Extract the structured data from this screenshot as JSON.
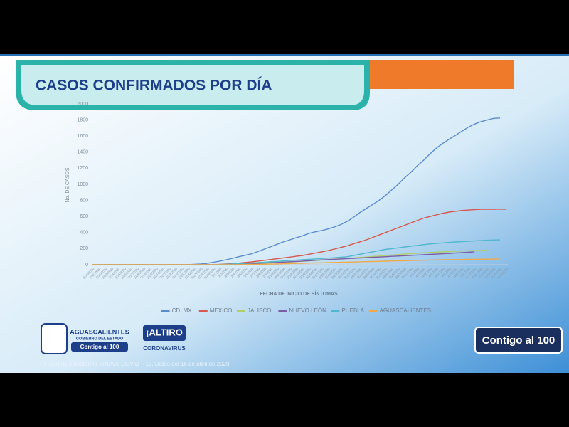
{
  "chart_data": {
    "type": "line",
    "title": "CASOS CONFIRMADOS POR DÍA",
    "y_label": "No. DE CASOS",
    "x_label": "FECHA DE INICIO DE SÍNTOMAS",
    "categories": [
      "2/10/2020",
      "2/11/2020",
      "2/12/2020",
      "2/13/2020",
      "2/14/2020",
      "2/15/2020",
      "2/16/2020",
      "2/17/2020",
      "2/18/2020",
      "2/19/2020",
      "2/20/2020",
      "2/21/2020",
      "2/22/2020",
      "2/23/2020",
      "2/24/2020",
      "2/25/2020",
      "2/26/2020",
      "2/27/2020",
      "2/28/2020",
      "2/29/2020",
      "3/1/2020",
      "3/2/2020",
      "3/3/2020",
      "3/4/2020",
      "3/5/2020",
      "3/6/2020",
      "3/7/2020",
      "3/8/2020",
      "3/9/2020",
      "3/10/2020",
      "3/11/2020",
      "3/12/2020",
      "3/13/2020",
      "3/14/2020",
      "3/15/2020",
      "3/16/2020",
      "3/17/2020",
      "3/18/2020",
      "3/19/2020",
      "3/20/2020",
      "3/21/2020",
      "3/22/2020",
      "3/23/2020",
      "3/24/2020",
      "3/25/2020",
      "3/26/2020",
      "3/27/2020",
      "3/28/2020",
      "3/29/2020",
      "3/30/2020",
      "3/31/2020",
      "4/1/2020",
      "4/2/2020",
      "4/3/2020",
      "4/4/2020",
      "4/5/2020",
      "4/6/2020",
      "4/7/2020",
      "4/8/2020",
      "4/9/2020",
      "4/10/2020",
      "4/11/2020",
      "4/12/2020",
      "4/13/2020",
      "4/14/2020",
      "4/15/2020"
    ],
    "series": [
      {
        "name": "CD. MX",
        "color": "#5b8ccb",
        "values": [
          0,
          0,
          0,
          0,
          0,
          0,
          0,
          0,
          0,
          0,
          0,
          0,
          0,
          0,
          0,
          2,
          5,
          10,
          18,
          30,
          45,
          62,
          80,
          100,
          118,
          135,
          165,
          195,
          225,
          255,
          285,
          310,
          335,
          360,
          390,
          410,
          425,
          445,
          470,
          500,
          540,
          590,
          650,
          700,
          750,
          800,
          860,
          930,
          1000,
          1080,
          1150,
          1230,
          1300,
          1380,
          1450,
          1510,
          1560,
          1610,
          1660,
          1710,
          1750,
          1780,
          1800,
          1820,
          1825,
          null
        ]
      },
      {
        "name": "MEXICO",
        "color": "#d9574c",
        "values": [
          0,
          0,
          0,
          0,
          0,
          0,
          0,
          0,
          0,
          0,
          0,
          0,
          0,
          0,
          0,
          0,
          0,
          0,
          0,
          0,
          5,
          10,
          15,
          20,
          28,
          35,
          45,
          55,
          65,
          75,
          85,
          95,
          105,
          115,
          130,
          145,
          160,
          175,
          195,
          215,
          235,
          260,
          285,
          310,
          340,
          370,
          400,
          430,
          460,
          490,
          520,
          550,
          580,
          600,
          620,
          640,
          655,
          665,
          675,
          680,
          685,
          690,
          690,
          690,
          692,
          690
        ]
      },
      {
        "name": "JALISCO",
        "color": "#b3cf63",
        "values": [
          0,
          0,
          0,
          0,
          0,
          0,
          0,
          0,
          0,
          0,
          0,
          0,
          0,
          0,
          0,
          0,
          0,
          0,
          0,
          0,
          2,
          4,
          6,
          8,
          10,
          12,
          15,
          18,
          21,
          25,
          29,
          33,
          38,
          43,
          48,
          53,
          58,
          63,
          68,
          73,
          78,
          84,
          90,
          96,
          102,
          108,
          114,
          120,
          126,
          132,
          138,
          143,
          148,
          152,
          156,
          160,
          164,
          168,
          171,
          174,
          176,
          178,
          180,
          null,
          null,
          null
        ]
      },
      {
        "name": "NUEVO LEÓN",
        "color": "#7b5ea7",
        "values": [
          0,
          0,
          0,
          0,
          0,
          0,
          0,
          0,
          0,
          0,
          0,
          0,
          0,
          0,
          0,
          0,
          0,
          0,
          0,
          0,
          2,
          4,
          6,
          9,
          12,
          15,
          18,
          21,
          25,
          29,
          33,
          37,
          41,
          45,
          50,
          55,
          60,
          64,
          68,
          72,
          76,
          80,
          84,
          88,
          92,
          96,
          100,
          104,
          108,
          112,
          116,
          120,
          124,
          128,
          132,
          136,
          140,
          145,
          150,
          155,
          160,
          null,
          null,
          null,
          null,
          null
        ]
      },
      {
        "name": "PUEBLA",
        "color": "#4fb8cc",
        "values": [
          0,
          0,
          0,
          0,
          0,
          0,
          0,
          0,
          0,
          0,
          0,
          0,
          0,
          0,
          0,
          0,
          0,
          0,
          0,
          0,
          3,
          6,
          10,
          14,
          18,
          22,
          27,
          32,
          37,
          42,
          47,
          52,
          57,
          62,
          67,
          72,
          77,
          82,
          87,
          93,
          100,
          115,
          130,
          145,
          160,
          175,
          190,
          200,
          210,
          220,
          230,
          240,
          250,
          258,
          265,
          272,
          278,
          283,
          288,
          292,
          296,
          300,
          304,
          307,
          310,
          null
        ]
      },
      {
        "name": "AGUASCALIENTES",
        "color": "#f1a94a",
        "values": [
          0,
          0,
          0,
          0,
          0,
          0,
          0,
          0,
          0,
          0,
          0,
          0,
          0,
          0,
          0,
          0,
          0,
          0,
          0,
          0,
          0,
          0,
          1,
          2,
          3,
          4,
          5,
          6,
          8,
          10,
          12,
          14,
          16,
          18,
          20,
          22,
          24,
          26,
          28,
          30,
          32,
          34,
          36,
          38,
          40,
          42,
          44,
          46,
          48,
          50,
          52,
          54,
          56,
          58,
          60,
          62,
          63,
          64,
          65,
          66,
          67,
          68,
          69,
          70,
          71,
          null
        ]
      }
    ],
    "ylim": [
      0,
      2000
    ],
    "yticks": [
      0,
      200,
      400,
      600,
      800,
      1000,
      1200,
      1400,
      1600,
      1800,
      2000
    ],
    "grid": false,
    "legend": "bottom"
  },
  "footer": {
    "state": "AGUASCALIENTES",
    "government": "GOBIERNO DEL ESTADO",
    "motto": "Contigo al 100",
    "campaign_top": "¡ALTIRO",
    "campaign_bottom": "CORONAVIRUS",
    "badge": "Contigo al 100",
    "source": "FUENTE: Plataforma SINAVE COVID – 19. Datos del 16 de abril de 2020"
  }
}
